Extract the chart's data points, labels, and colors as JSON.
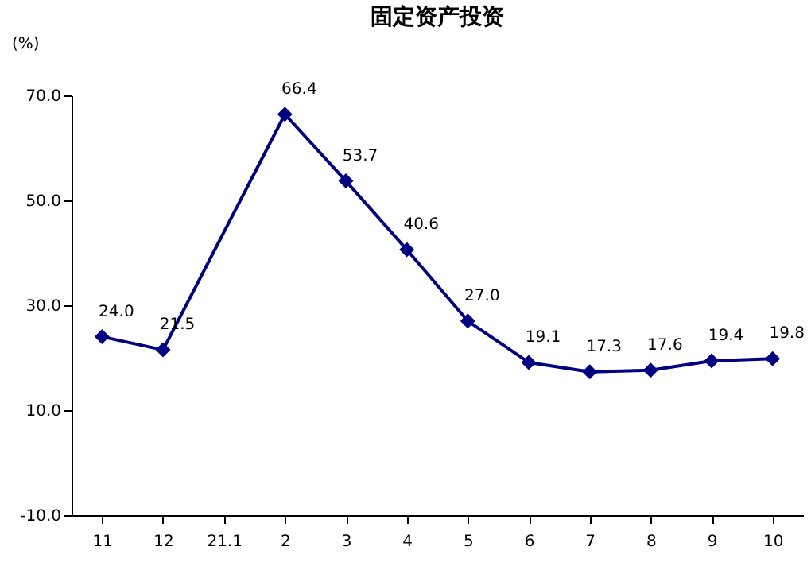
{
  "chart_data": {
    "type": "line",
    "title": "固定资产投资",
    "ylabel": "(%)",
    "categories": [
      "11",
      "12",
      "21.1",
      "2",
      "3",
      "4",
      "5",
      "6",
      "7",
      "8",
      "9",
      "10"
    ],
    "series": [
      {
        "color": "#000080",
        "values": [
          24.0,
          21.5,
          null,
          66.4,
          53.7,
          40.6,
          27.0,
          19.1,
          17.3,
          17.6,
          19.4,
          19.8
        ],
        "value_labels": [
          "24.0",
          "21.5",
          null,
          "66.4",
          "53.7",
          "40.6",
          "27.0",
          "19.1",
          "17.3",
          "17.6",
          "19.4",
          "19.8"
        ]
      }
    ],
    "ylim": [
      -10,
      70
    ],
    "yticks": [
      {
        "value": -10,
        "label": "-10.0"
      },
      {
        "value": 10,
        "label": "10.0"
      },
      {
        "value": 30,
        "label": "30.0"
      },
      {
        "value": 50,
        "label": "50.0"
      },
      {
        "value": 70,
        "label": "70.0"
      }
    ],
    "marker": "diamond",
    "line_style": "solid"
  }
}
